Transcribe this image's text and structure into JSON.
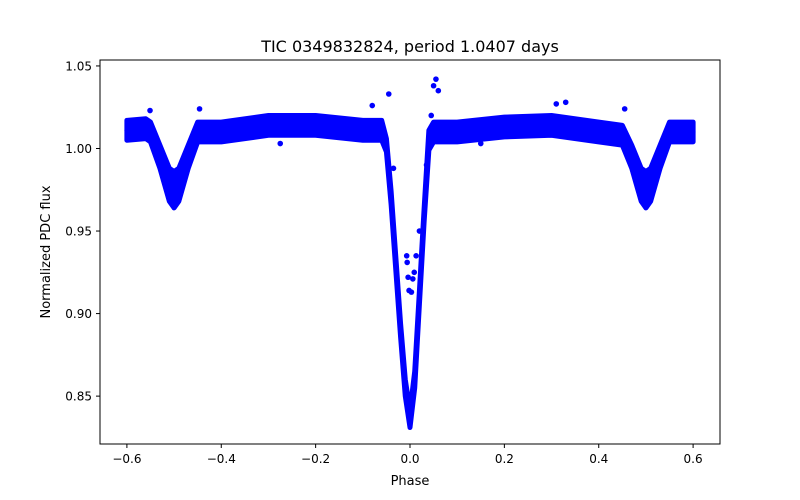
{
  "chart_data": {
    "type": "scatter",
    "title": "TIC 0349832824, period 1.0407 days",
    "xlabel": "Phase",
    "ylabel": "Normalized PDC flux",
    "xlim": [
      -0.657,
      0.657
    ],
    "ylim": [
      0.821,
      1.0536
    ],
    "xticks": [
      -0.6,
      -0.4,
      -0.2,
      0.0,
      0.2,
      0.4,
      0.6
    ],
    "xtick_labels": [
      "−0.6",
      "−0.4",
      "−0.2",
      "0.0",
      "0.2",
      "0.4",
      "0.6"
    ],
    "yticks": [
      0.85,
      0.9,
      0.95,
      1.0,
      1.05
    ],
    "ytick_labels": [
      "0.85",
      "0.90",
      "0.95",
      "1.00",
      "1.05"
    ],
    "grid": false,
    "color": "#0000ff",
    "trend": {
      "phase": [
        -0.6,
        -0.56,
        -0.55,
        -0.53,
        -0.51,
        -0.5,
        -0.49,
        -0.47,
        -0.45,
        -0.4,
        -0.3,
        -0.2,
        -0.1,
        -0.06,
        -0.05,
        -0.04,
        -0.03,
        -0.02,
        -0.01,
        0.0,
        0.01,
        0.02,
        0.03,
        0.04,
        0.05,
        0.1,
        0.2,
        0.3,
        0.4,
        0.45,
        0.47,
        0.49,
        0.5,
        0.51,
        0.53,
        0.55,
        0.6
      ],
      "flux": [
        1.011,
        1.012,
        1.01,
        0.995,
        0.978,
        0.975,
        0.978,
        0.995,
        1.01,
        1.01,
        1.014,
        1.014,
        1.011,
        1.011,
        1.002,
        0.97,
        0.93,
        0.89,
        0.855,
        0.836,
        0.86,
        0.91,
        0.96,
        1.005,
        1.01,
        1.01,
        1.013,
        1.014,
        1.01,
        1.008,
        0.995,
        0.978,
        0.975,
        0.978,
        0.995,
        1.01,
        1.01
      ],
      "spread": [
        0.006,
        0.006,
        0.006,
        0.007,
        0.01,
        0.011,
        0.01,
        0.007,
        0.006,
        0.006,
        0.006,
        0.006,
        0.006,
        0.006,
        0.004,
        0.004,
        0.004,
        0.004,
        0.005,
        0.005,
        0.005,
        0.004,
        0.004,
        0.006,
        0.006,
        0.006,
        0.006,
        0.006,
        0.006,
        0.006,
        0.007,
        0.01,
        0.011,
        0.01,
        0.007,
        0.006,
        0.006
      ]
    },
    "outliers": [
      [
        -0.551,
        1.023
      ],
      [
        -0.446,
        1.024
      ],
      [
        -0.275,
        1.003
      ],
      [
        -0.08,
        1.026
      ],
      [
        -0.045,
        1.033
      ],
      [
        -0.035,
        0.988
      ],
      [
        -0.007,
        0.935
      ],
      [
        -0.006,
        0.931
      ],
      [
        -0.004,
        0.922
      ],
      [
        -0.002,
        0.914
      ],
      [
        0.003,
        0.913
      ],
      [
        0.006,
        0.921
      ],
      [
        0.009,
        0.925
      ],
      [
        0.013,
        0.935
      ],
      [
        0.02,
        0.95
      ],
      [
        0.035,
        0.99
      ],
      [
        0.045,
        1.02
      ],
      [
        0.05,
        1.038
      ],
      [
        0.055,
        1.042
      ],
      [
        0.06,
        1.035
      ],
      [
        0.15,
        1.003
      ],
      [
        0.31,
        1.027
      ],
      [
        0.33,
        1.028
      ],
      [
        0.455,
        1.024
      ]
    ]
  }
}
